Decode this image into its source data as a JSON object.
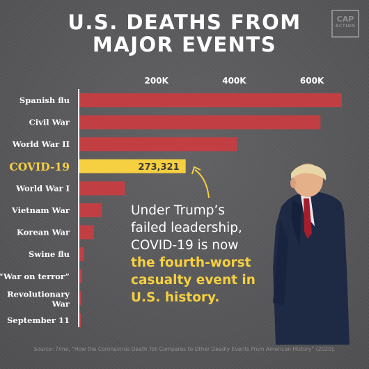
{
  "header": {
    "title_line1": "U.S. DEATHS FROM",
    "title_line2": "MAJOR EVENTS",
    "logo_line1": "CAP",
    "logo_line2": "ACTION"
  },
  "chart_data": {
    "type": "bar",
    "orientation": "horizontal",
    "categories": [
      "Spanish flu",
      "Civil War",
      "World War II",
      "COVID-19",
      "World War I",
      "Vietnam War",
      "Korean War",
      "Swine flu",
      "“War on terror”",
      "Revolutionary War",
      "September 11"
    ],
    "values": [
      675000,
      620000,
      405000,
      273321,
      117000,
      58000,
      37000,
      12000,
      7000,
      4400,
      2977
    ],
    "highlight_index": 3,
    "data_labels": {
      "COVID-19": "273,321"
    },
    "x_ticks": [
      "200K",
      "400K",
      "600K"
    ],
    "x_tick_values": [
      200000,
      400000,
      600000
    ],
    "xlim": [
      0,
      700000
    ],
    "colors": {
      "bar": "#c13f43",
      "highlight": "#f6d040",
      "highlight_label": "#3a3a3a",
      "axis": "#ffffff",
      "text": "#ffffff"
    }
  },
  "annotation": {
    "line1": "Under Trump’s",
    "line2": "failed leadership,",
    "line3": "COVID-19 is now",
    "line4": "the fourth-worst",
    "line5": "casualty event in",
    "line6": "U.S. history."
  },
  "footer": {
    "source_prefix": "Source: ",
    "source_publication": "Time",
    "source_rest": ", “How the Coronavirus Death Toll Compares to Other Deadly Events From American History” (2020)."
  }
}
